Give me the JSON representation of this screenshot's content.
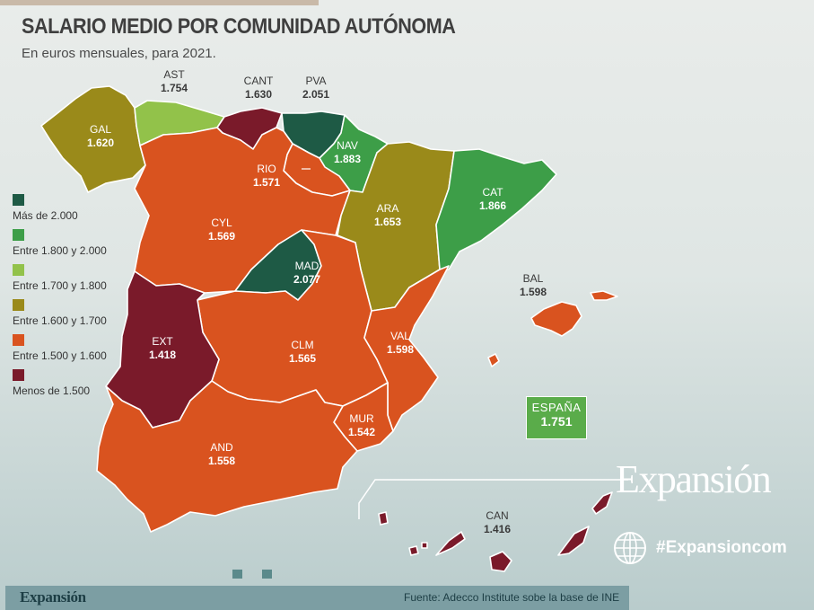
{
  "title": "SALARIO MEDIO POR COMUNIDAD AUTÓNOMA",
  "subtitle": "En euros mensuales, para 2021.",
  "colors": {
    "above_2000": "#1e5a45",
    "1800_2000": "#3d9e48",
    "1700_1800": "#92c24a",
    "1600_1700": "#9a8a1a",
    "1500_1600": "#d9531f",
    "below_1500": "#7a1a2a"
  },
  "legend": [
    {
      "label": "Más de 2.000",
      "color": "#1e5a45"
    },
    {
      "label": "Entre 1.800 y 2.000",
      "color": "#3d9e48"
    },
    {
      "label": "Entre 1.700 y 1.800",
      "color": "#92c24a"
    },
    {
      "label": "Entre 1.600 y 1.700",
      "color": "#9a8a1a"
    },
    {
      "label": "Entre 1.500 y 1.600",
      "color": "#d9531f"
    },
    {
      "label": "Menos de 1.500",
      "color": "#7a1a2a"
    }
  ],
  "regions": [
    {
      "code": "GAL",
      "value": "1.620",
      "color": "#9a8a1a"
    },
    {
      "code": "AST",
      "value": "1.754",
      "color": "#92c24a"
    },
    {
      "code": "CANT",
      "value": "1.630",
      "color": "#9a8a1a"
    },
    {
      "code": "PVA",
      "value": "2.051",
      "color": "#1e5a45"
    },
    {
      "code": "NAV",
      "value": "1.883",
      "color": "#3d9e48"
    },
    {
      "code": "RIO",
      "value": "1.571",
      "color": "#d9531f"
    },
    {
      "code": "CYL",
      "value": "1.569",
      "color": "#d9531f"
    },
    {
      "code": "ARA",
      "value": "1.653",
      "color": "#9a8a1a"
    },
    {
      "code": "CAT",
      "value": "1.866",
      "color": "#3d9e48"
    },
    {
      "code": "MAD",
      "value": "2.077",
      "color": "#1e5a45"
    },
    {
      "code": "EXT",
      "value": "1.418",
      "color": "#7a1a2a"
    },
    {
      "code": "CLM",
      "value": "1.565",
      "color": "#d9531f"
    },
    {
      "code": "VAL",
      "value": "1.598",
      "color": "#d9531f"
    },
    {
      "code": "BAL",
      "value": "1.598",
      "color": "#d9531f"
    },
    {
      "code": "MUR",
      "value": "1.542",
      "color": "#d9531f"
    },
    {
      "code": "AND",
      "value": "1.558",
      "color": "#d9531f"
    },
    {
      "code": "CAN",
      "value": "1.416",
      "color": "#7a1a2a"
    }
  ],
  "spain": {
    "label": "ESPAÑA",
    "value": "1.751"
  },
  "brand": {
    "name": "Expansión",
    "hashtag": "#Expansioncom"
  },
  "footer": {
    "logo": "Expansión",
    "source": "Fuente: Adecco Institute sobe la base de INE"
  }
}
